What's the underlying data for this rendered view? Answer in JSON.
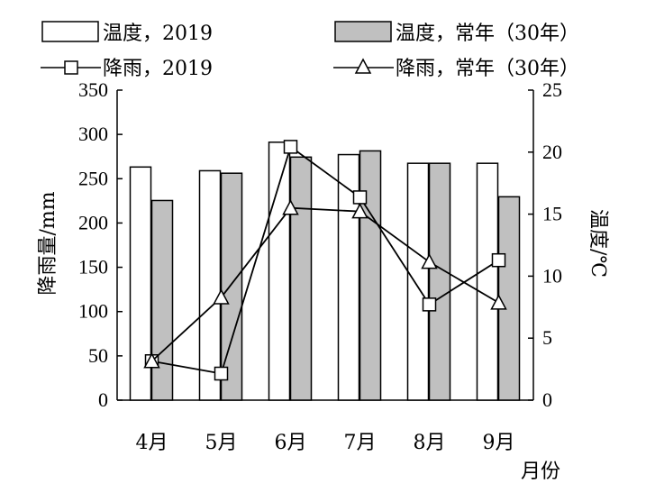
{
  "chart_data": {
    "type": "bar+line",
    "categories": [
      "4月",
      "5月",
      "6月",
      "7月",
      "8月",
      "9月"
    ],
    "xlabel": "月份",
    "ylabel_left": "降雨量/mm",
    "ylabel_right": "温度/℃",
    "ylim_left": [
      0,
      350
    ],
    "ylim_right": [
      0,
      25
    ],
    "yticks_left": [
      "0",
      "50",
      "100",
      "150",
      "200",
      "250",
      "300",
      "350"
    ],
    "yticks_right": [
      "0",
      "5",
      "10",
      "15",
      "20",
      "25"
    ],
    "grid": false,
    "legend_position": "top",
    "bar_series": [
      {
        "name": "温度，2019",
        "axis": "right",
        "color": "#ffffff",
        "values": [
          18.8,
          18.5,
          20.8,
          19.8,
          19.1,
          19.1
        ]
      },
      {
        "name": "温度，常年（30年）",
        "axis": "right",
        "color": "#c0c0c0",
        "values": [
          16.1,
          18.3,
          19.6,
          20.1,
          19.1,
          16.4
        ]
      }
    ],
    "line_series": [
      {
        "name": "降雨，2019",
        "axis": "left",
        "marker": "square",
        "values": [
          44,
          30,
          286,
          229,
          108,
          158
        ]
      },
      {
        "name": "降雨，常年（30年）",
        "axis": "left",
        "marker": "triangle",
        "values": [
          44,
          116,
          217,
          213,
          156,
          110
        ]
      }
    ]
  }
}
